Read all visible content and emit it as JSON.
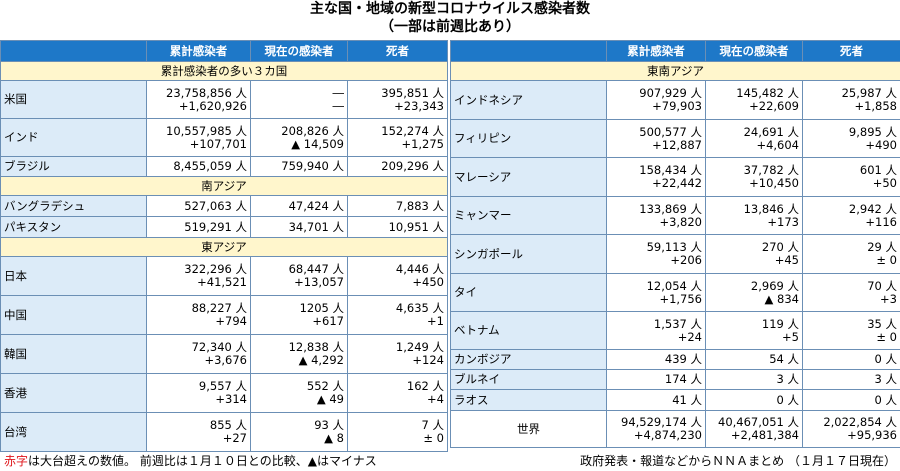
{
  "title": {
    "line1": "主な国・地域の新型コロナウイルス感染者数",
    "line2": "（一部は前週比あり）"
  },
  "headers": [
    "累計感染者",
    "現在の感染者",
    "死者"
  ],
  "left_sections": [
    {
      "heading": "累計感染者の多い３カ国",
      "rows": [
        {
          "name": "米国",
          "cumulative": "23,758,856 人",
          "cumulative_delta": "+1,620,926",
          "current": "―",
          "current_delta": "―",
          "deaths": "395,851 人",
          "deaths_delta": "+23,343"
        },
        {
          "name": "インド",
          "cumulative": "10,557,985 人",
          "cumulative_delta": "+107,701",
          "current": "208,826 人",
          "current_delta": "▲ 14,509",
          "deaths": "152,274 人",
          "deaths_delta": "+1,275"
        },
        {
          "name": "ブラジル",
          "cumulative": "8,455,059 人",
          "cumulative_delta": "",
          "current": "759,940 人",
          "current_delta": "",
          "deaths": "209,296 人",
          "deaths_delta": ""
        }
      ]
    },
    {
      "heading": "南アジア",
      "rows": [
        {
          "name": "バングラデシュ",
          "cumulative": "527,063 人",
          "cumulative_delta": "",
          "current": "47,424 人",
          "current_delta": "",
          "deaths": "7,883 人",
          "deaths_delta": ""
        },
        {
          "name": "パキスタン",
          "cumulative": "519,291 人",
          "cumulative_delta": "",
          "current": "34,701 人",
          "current_delta": "",
          "deaths": "10,951 人",
          "deaths_delta": ""
        }
      ]
    },
    {
      "heading": "東アジア",
      "rows": [
        {
          "name": "日本",
          "cumulative": "322,296 人",
          "cumulative_delta": "+41,521",
          "current": "68,447 人",
          "current_delta": "+13,057",
          "deaths": "4,446 人",
          "deaths_delta": "+450"
        },
        {
          "name": "中国",
          "cumulative": "88,227 人",
          "cumulative_delta": "+794",
          "current": "1205 人",
          "current_delta": "+617",
          "deaths": "4,635 人",
          "deaths_delta": "+1"
        },
        {
          "name": "韓国",
          "cumulative": "72,340 人",
          "cumulative_delta": "+3,676",
          "current": "12,838 人",
          "current_delta": "▲ 4,292",
          "deaths": "1,249 人",
          "deaths_delta": "+124"
        },
        {
          "name": "香港",
          "cumulative": "9,557 人",
          "cumulative_delta": "+314",
          "current": "552 人",
          "current_delta": "▲ 49",
          "deaths": "162 人",
          "deaths_delta": "+4"
        },
        {
          "name": "台湾",
          "cumulative": "855 人",
          "cumulative_delta": "+27",
          "current": "93 人",
          "current_delta": "▲ 8",
          "deaths": "7 人",
          "deaths_delta": "± 0"
        }
      ]
    }
  ],
  "right_section": {
    "heading": "東南アジア",
    "rows": [
      {
        "name": "インドネシア",
        "cumulative": "907,929 人",
        "cumulative_delta": "+79,903",
        "current": "145,482 人",
        "current_delta": "+22,609",
        "deaths": "25,987 人",
        "deaths_delta": "+1,858"
      },
      {
        "name": "フィリピン",
        "cumulative": "500,577 人",
        "cumulative_delta": "+12,887",
        "current": "24,691 人",
        "current_delta": "+4,604",
        "deaths": "9,895 人",
        "deaths_delta": "+490"
      },
      {
        "name": "マレーシア",
        "cumulative": "158,434 人",
        "cumulative_delta": "+22,442",
        "current": "37,782 人",
        "current_delta": "+10,450",
        "deaths": "601 人",
        "deaths_delta": "+50"
      },
      {
        "name": "ミャンマー",
        "cumulative": "133,869 人",
        "cumulative_delta": "+3,820",
        "current": "13,846 人",
        "current_delta": "+173",
        "deaths": "2,942 人",
        "deaths_delta": "+116"
      },
      {
        "name": "シンガポール",
        "cumulative": "59,113 人",
        "cumulative_delta": "+206",
        "current": "270 人",
        "current_delta": "+45",
        "deaths": "29 人",
        "deaths_delta": "± 0"
      },
      {
        "name": "タイ",
        "cumulative": "12,054 人",
        "cumulative_delta": "+1,756",
        "current": "2,969 人",
        "current_delta": "▲ 834",
        "deaths": "70 人",
        "deaths_delta": "+3"
      },
      {
        "name": "ベトナム",
        "cumulative": "1,537 人",
        "cumulative_delta": "+24",
        "current": "119 人",
        "current_delta": "+5",
        "deaths": "35 人",
        "deaths_delta": "± 0"
      },
      {
        "name": "カンボジア",
        "cumulative": "439 人",
        "cumulative_delta": "",
        "current": "54 人",
        "current_delta": "",
        "deaths": "0 人",
        "deaths_delta": ""
      },
      {
        "name": "ブルネイ",
        "cumulative": "174 人",
        "cumulative_delta": "",
        "current": "3 人",
        "current_delta": "",
        "deaths": "3 人",
        "deaths_delta": ""
      },
      {
        "name": "ラオス",
        "cumulative": "41 人",
        "cumulative_delta": "",
        "current": "0 人",
        "current_delta": "",
        "deaths": "0 人",
        "deaths_delta": ""
      }
    ],
    "world": {
      "name": "世界",
      "cumulative": "94,529,174 人",
      "cumulative_delta": "+4,874,230",
      "current": "40,467,051 人",
      "current_delta": "+2,481,384",
      "deaths": "2,022,854 人",
      "deaths_delta": "+95,936"
    }
  },
  "footer": {
    "red_word": "赤字",
    "note": "は大台超えの数値。 前週比は１月１０日との比較、▲はマイナス",
    "source": "政府発表・報道などからＮＮＡまとめ （１月１７日現在）"
  },
  "colors": {
    "header_blue": "#1e78c8",
    "section_yellow": "#fff6cc",
    "name_blue": "#dcebf8",
    "accent_red": "#e0161b"
  }
}
